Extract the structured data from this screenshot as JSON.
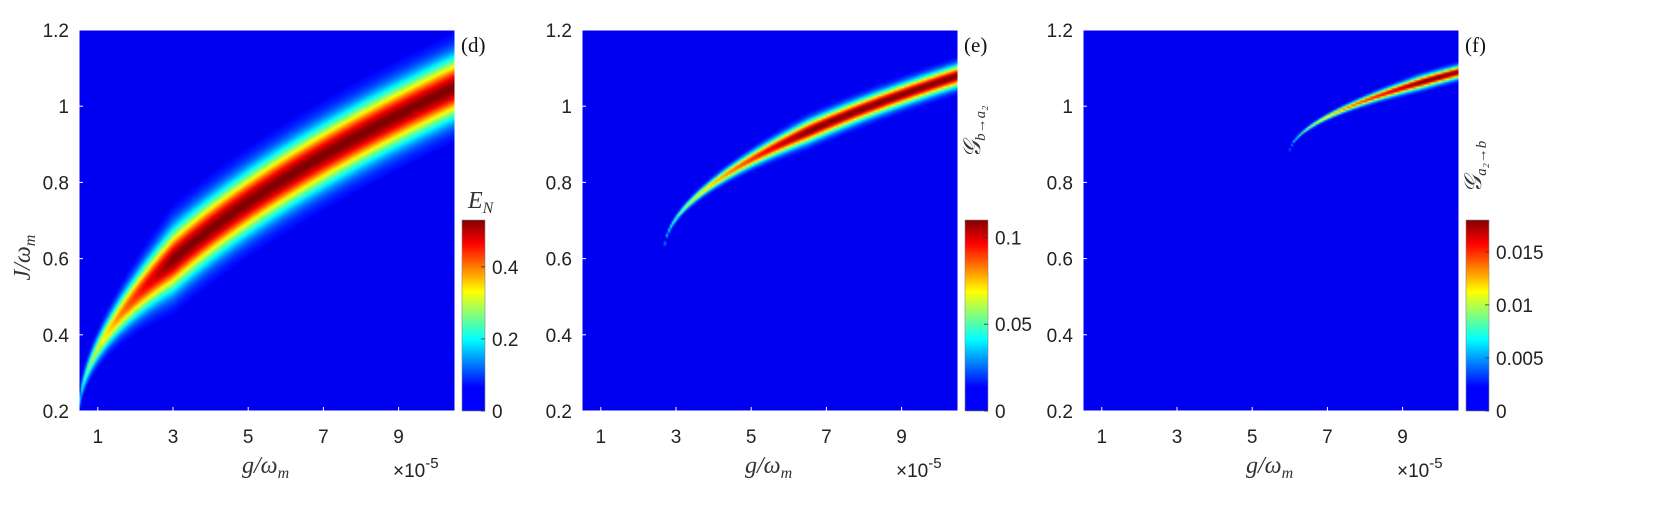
{
  "chart_data": [
    {
      "type": "heatmap",
      "panel_label": "(d)",
      "xlabel": "g/ω_m",
      "ylabel": "J/ω_m",
      "colorbar_label": "E_N",
      "x_multiplier": "×10^-5",
      "x_ticks": [
        "1",
        "3",
        "5",
        "7",
        "9"
      ],
      "y_ticks": [
        "0.2",
        "0.4",
        "0.6",
        "0.8",
        "1",
        "1.2"
      ],
      "x_range": [
        0.5,
        10.5
      ],
      "y_range": [
        0.2,
        1.2
      ],
      "color_range": [
        0,
        0.53
      ],
      "colorbar_ticks": [
        "0",
        "0.2",
        "0.4"
      ],
      "colorbar_tick_values": [
        0,
        0.2,
        0.4
      ],
      "ridge": {
        "start": [
          0.5,
          0.2
        ],
        "end": [
          10.5,
          1.05
        ],
        "peak": 0.53,
        "width": 0.08,
        "onset_g": 0.5,
        "full_g": 3.0,
        "tail_width": 0.02
      }
    },
    {
      "type": "heatmap",
      "panel_label": "(e)",
      "xlabel": "g/ω_m",
      "ylabel": "",
      "colorbar_label": "𝒢_{b→a₂}",
      "x_multiplier": "×10^-5",
      "x_ticks": [
        "1",
        "3",
        "5",
        "7",
        "9"
      ],
      "y_ticks": [
        "0.2",
        "0.4",
        "0.6",
        "0.8",
        "1",
        "1.2"
      ],
      "x_range": [
        0.5,
        10.5
      ],
      "y_range": [
        0.2,
        1.2
      ],
      "color_range": [
        0,
        0.11
      ],
      "colorbar_ticks": [
        "0",
        "0.05",
        "0.1"
      ],
      "colorbar_tick_values": [
        0,
        0.05,
        0.1
      ],
      "ridge": {
        "start": [
          2.7,
          0.63
        ],
        "end": [
          10.5,
          1.08
        ],
        "peak": 0.11,
        "width": 0.028,
        "onset_g": 2.7,
        "full_g": 6.5,
        "tail_width": 0.006
      }
    },
    {
      "type": "heatmap",
      "panel_label": "(f)",
      "xlabel": "g/ω_m",
      "ylabel": "",
      "colorbar_label": "𝒢_{a₂→b}",
      "x_multiplier": "×10^-5",
      "x_ticks": [
        "1",
        "3",
        "5",
        "7",
        "9"
      ],
      "y_ticks": [
        "0.2",
        "0.4",
        "0.6",
        "0.8",
        "1",
        "1.2"
      ],
      "x_range": [
        0.5,
        10.5
      ],
      "y_range": [
        0.2,
        1.2
      ],
      "color_range": [
        0,
        0.018
      ],
      "colorbar_ticks": [
        "0",
        "0.005",
        "0.01",
        "0.015"
      ],
      "colorbar_tick_values": [
        0,
        0.005,
        0.01,
        0.015
      ],
      "ridge": {
        "start": [
          6.0,
          0.88
        ],
        "end": [
          10.5,
          1.09
        ],
        "peak": 0.018,
        "width": 0.016,
        "onset_g": 6.0,
        "full_g": 9.5,
        "tail_width": 0.003
      }
    }
  ]
}
